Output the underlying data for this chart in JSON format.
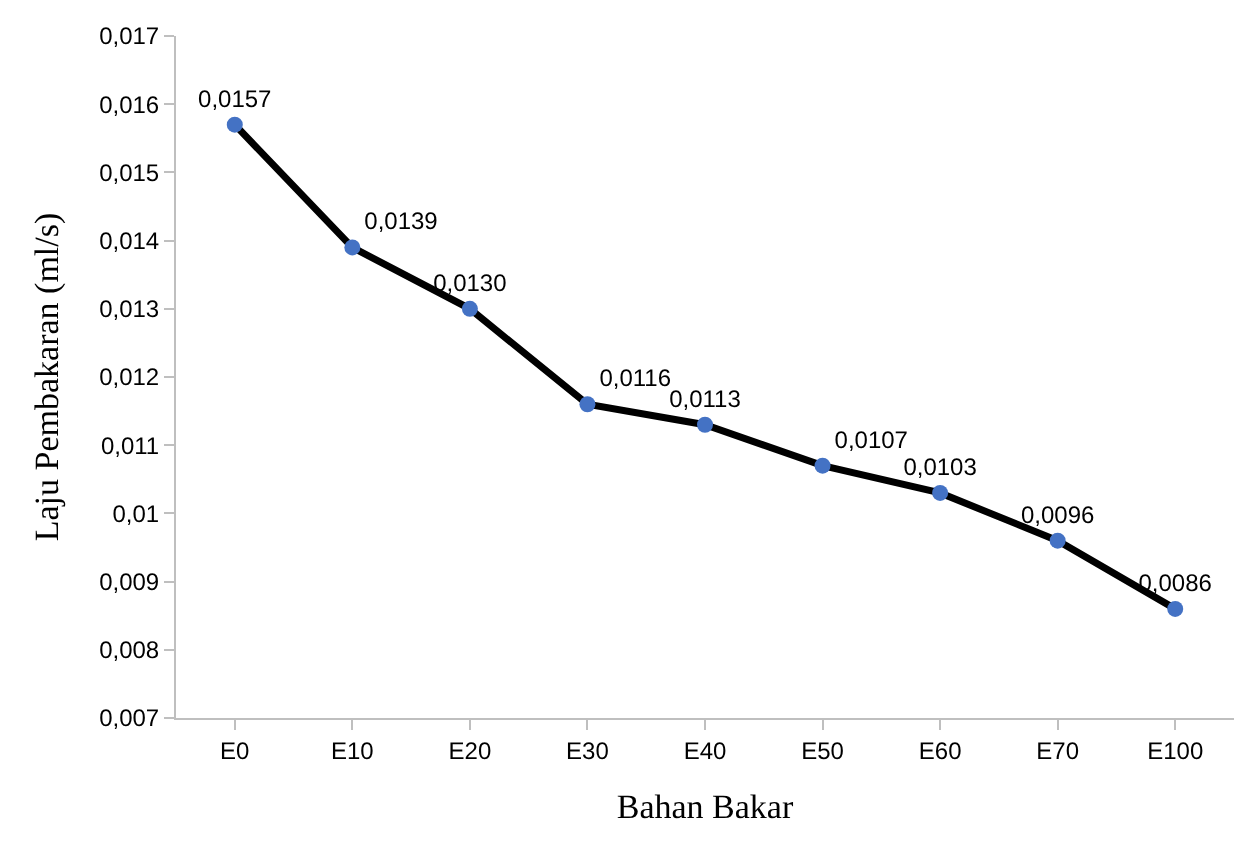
{
  "chart_data": {
    "type": "line",
    "xlabel": "Bahan Bakar",
    "ylabel": "Laju Pembakaran (ml/s)",
    "categories": [
      "E0",
      "E10",
      "E20",
      "E30",
      "E40",
      "E50",
      "E60",
      "E70",
      "E100"
    ],
    "series": [
      {
        "color": "#000000",
        "colors": [
          "#4472c4",
          "#4472c4",
          "#4472c4",
          "#4472c4",
          "#4472c4",
          "#4472c4",
          "#4472c4",
          "#4472c4",
          "#4472c4"
        ],
        "values": [
          0.0157,
          0.0139,
          0.013,
          0.0116,
          0.0113,
          0.0107,
          0.0103,
          0.0096,
          0.0086
        ],
        "value_labels": [
          "0,0157",
          "0,0139",
          "0,0130",
          "0,0116",
          "0,0113",
          "0,0107",
          "0,0103",
          "0,0096",
          "0,0086"
        ]
      }
    ],
    "ylim": [
      0.007,
      0.017
    ],
    "yticks": [
      {
        "value": 0.007,
        "label": "0,007"
      },
      {
        "value": 0.008,
        "label": "0,008"
      },
      {
        "value": 0.009,
        "label": "0,009"
      },
      {
        "value": 0.01,
        "label": "0,01"
      },
      {
        "value": 0.011,
        "label": "0,011"
      },
      {
        "value": 0.012,
        "label": "0,012"
      },
      {
        "value": 0.013,
        "label": "0,013"
      },
      {
        "value": 0.014,
        "label": "0,014"
      },
      {
        "value": 0.015,
        "label": "0,015"
      },
      {
        "value": 0.016,
        "label": "0,016"
      },
      {
        "value": 0.017,
        "label": "0,017"
      }
    ],
    "legend": false,
    "marker": "circle",
    "line_style": "solid"
  }
}
